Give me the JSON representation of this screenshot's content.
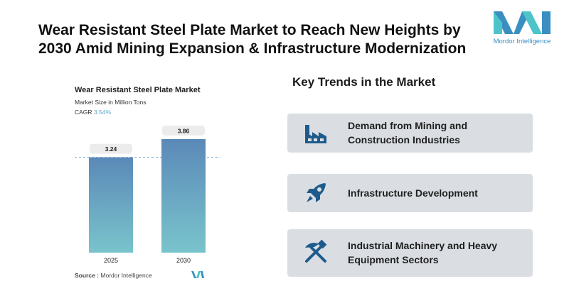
{
  "header": {
    "headline": "Wear Resistant Steel Plate Market to Reach New Heights by 2030 Amid Mining Expansion & Infrastructure Modernization",
    "brand_name": "Mordor Intelligence"
  },
  "chart_data": {
    "type": "bar",
    "title": "Wear Resistant Steel Plate Market",
    "subtitle": "Market Size in Million Tons",
    "cagr_label": "CAGR",
    "cagr_value": "3.54%",
    "categories": [
      "2025",
      "2030"
    ],
    "values": [
      3.24,
      3.86
    ],
    "value_labels": [
      "3.24",
      "3.86"
    ],
    "ylim": [
      0,
      4.1
    ],
    "grid": false,
    "colors": {
      "bar_top": "#5b89b8",
      "bar_bottom": "#79c4cc",
      "reference_line": "#6fa3cf"
    }
  },
  "source": {
    "label": "Source :",
    "value": "Mordor Intelligence"
  },
  "trends": {
    "title": "Key Trends in the Market",
    "items": [
      {
        "label": "Demand from Mining and Construction Industries",
        "icon": "factory-icon"
      },
      {
        "label": "Infrastructure Development",
        "icon": "rocket-icon"
      },
      {
        "label": "Industrial Machinery and Heavy Equipment Sectors",
        "icon": "hammer-pickaxe-icon"
      }
    ]
  },
  "colors": {
    "accent": "#1e5b8c",
    "card_bg": "#dadee3",
    "brand_blue": "#3a8fc0",
    "brand_teal": "#4cc4c9"
  }
}
